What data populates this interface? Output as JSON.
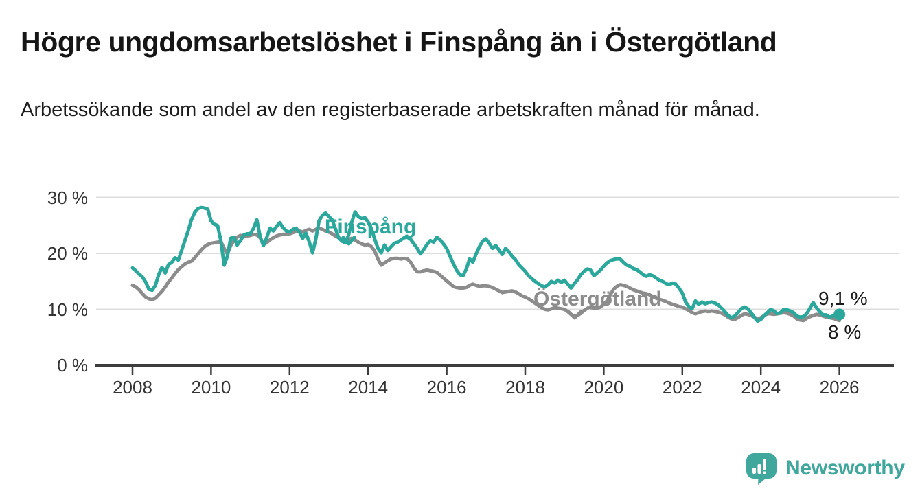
{
  "header": {
    "title": "Högre ungdomsarbetslöshet i Finspång än i Östergötland",
    "subtitle": "Arbetssökande som andel av den registerbaserade arbetskraften månad för månad."
  },
  "colors": {
    "finspang": "#2ba89b",
    "ostergotland": "#8c8c8c",
    "axis": "#3d3d3d",
    "grid": "#dddddd",
    "title_text": "#161616",
    "tick_label": "#333333",
    "annotation_text": "#1a1a1a",
    "brand": "#3fa79b"
  },
  "chart_data": {
    "type": "line",
    "unit": "percent",
    "frequency": "monthly",
    "x_start": "2008-01",
    "x_end": "2026-01",
    "grid": "horizontal",
    "legend_position": "inline-labels",
    "ylim": [
      0,
      32
    ],
    "x_ticks": [
      {
        "year": 2008,
        "label": "2008"
      },
      {
        "year": 2010,
        "label": "2010"
      },
      {
        "year": 2012,
        "label": "2012"
      },
      {
        "year": 2014,
        "label": "2014"
      },
      {
        "year": 2016,
        "label": "2016"
      },
      {
        "year": 2018,
        "label": "2018"
      },
      {
        "year": 2020,
        "label": "2020"
      },
      {
        "year": 2022,
        "label": "2022"
      },
      {
        "year": 2024,
        "label": "2024"
      },
      {
        "year": 2026,
        "label": "2026"
      }
    ],
    "y_ticks": [
      {
        "value": 0,
        "label": "0 %"
      },
      {
        "value": 10,
        "label": "10 %"
      },
      {
        "value": 20,
        "label": "20 %"
      },
      {
        "value": 30,
        "label": "30 %"
      }
    ],
    "series": [
      {
        "name": "Finspång",
        "color": "#2ba89b",
        "end_label": "9,1 %",
        "end_value": 9.1,
        "values": [
          17.4,
          16.9,
          16.3,
          15.8,
          14.9,
          13.6,
          13.4,
          14.3,
          16.2,
          17.5,
          16.5,
          18.0,
          18.4,
          19.2,
          18.8,
          20.5,
          22.3,
          24.0,
          26.0,
          27.3,
          28.0,
          28.2,
          28.1,
          27.9,
          25.8,
          25.2,
          25.0,
          22.3,
          17.9,
          19.5,
          22.7,
          22.9,
          21.5,
          22.3,
          23.3,
          23.5,
          23.5,
          24.5,
          26.0,
          23.0,
          21.4,
          22.8,
          24.5,
          24.0,
          24.8,
          25.5,
          24.6,
          24.0,
          23.8,
          24.3,
          24.5,
          23.8,
          22.7,
          23.6,
          22.1,
          20.1,
          22.5,
          25.8,
          26.8,
          27.2,
          26.6,
          26.0,
          24.4,
          22.8,
          22.2,
          21.9,
          23.2,
          25.6,
          27.4,
          26.6,
          26.2,
          26.4,
          25.6,
          24.4,
          22.6,
          20.9,
          20.1,
          21.5,
          20.5,
          21.2,
          21.8,
          22.0,
          22.4,
          22.8,
          22.9,
          22.5,
          21.7,
          20.9,
          19.9,
          20.7,
          21.6,
          22.3,
          22.0,
          22.9,
          22.4,
          21.7,
          20.9,
          19.5,
          18.2,
          17.0,
          16.2,
          16.0,
          17.2,
          19.0,
          18.4,
          19.9,
          21.2,
          22.2,
          22.6,
          21.8,
          20.9,
          21.4,
          20.6,
          19.8,
          20.9,
          20.3,
          19.5,
          18.9,
          18.0,
          17.4,
          16.8,
          16.0,
          15.5,
          15.0,
          14.6,
          14.2,
          14.0,
          14.4,
          15.0,
          14.7,
          15.2,
          14.8,
          15.2,
          14.5,
          13.8,
          14.6,
          15.3,
          16.2,
          16.8,
          17.2,
          17.0,
          16.0,
          16.5,
          17.0,
          17.7,
          18.3,
          18.7,
          18.9,
          19.0,
          19.0,
          18.4,
          17.9,
          17.7,
          17.3,
          17.1,
          16.7,
          16.2,
          15.9,
          16.2,
          16.0,
          15.6,
          15.2,
          15.0,
          14.6,
          14.4,
          14.7,
          14.5,
          13.8,
          12.9,
          11.3,
          10.5,
          10.1,
          11.5,
          10.9,
          11.3,
          11.0,
          11.2,
          11.3,
          11.1,
          10.8,
          10.2,
          9.6,
          8.9,
          8.5,
          8.8,
          9.4,
          10.1,
          10.4,
          10.1,
          9.4,
          8.6,
          7.9,
          8.2,
          8.9,
          9.4,
          10.0,
          9.7,
          9.2,
          9.4,
          10.0,
          9.9,
          9.7,
          9.4,
          8.8,
          8.6,
          8.7,
          9.2,
          10.2,
          11.2,
          10.3,
          9.6,
          9.0,
          9.0,
          8.6,
          8.8,
          9.0,
          9.1
        ]
      },
      {
        "name": "Östergötland",
        "color": "#8c8c8c",
        "end_label": "8 %",
        "end_value": 8.0,
        "values": [
          14.3,
          14.0,
          13.5,
          12.8,
          12.2,
          11.9,
          11.7,
          12.0,
          12.6,
          13.2,
          14.0,
          14.9,
          15.6,
          16.4,
          17.1,
          17.6,
          18.1,
          18.4,
          18.6,
          19.2,
          19.9,
          20.6,
          21.2,
          21.6,
          21.8,
          21.9,
          22.0,
          22.1,
          20.9,
          19.9,
          21.4,
          22.3,
          22.9,
          23.2,
          23.0,
          23.1,
          23.2,
          23.4,
          23.3,
          22.8,
          21.6,
          21.9,
          22.4,
          22.8,
          23.1,
          23.3,
          23.4,
          23.4,
          23.5,
          23.7,
          23.9,
          24.0,
          23.8,
          24.1,
          24.3,
          24.0,
          24.3,
          24.5,
          24.3,
          24.0,
          23.8,
          23.5,
          23.1,
          22.8,
          22.5,
          22.3,
          22.5,
          22.7,
          22.4,
          22.0,
          21.7,
          21.5,
          21.6,
          21.2,
          20.4,
          19.0,
          17.9,
          18.3,
          18.7,
          19.0,
          19.1,
          19.1,
          19.0,
          19.1,
          19.0,
          18.4,
          17.4,
          16.7,
          16.7,
          16.9,
          17.0,
          16.9,
          16.8,
          16.6,
          16.1,
          15.6,
          15.1,
          14.6,
          14.1,
          13.9,
          13.8,
          13.8,
          13.9,
          14.3,
          14.5,
          14.3,
          14.1,
          14.2,
          14.2,
          14.1,
          13.9,
          13.6,
          13.3,
          13.0,
          13.1,
          13.2,
          13.3,
          13.1,
          12.8,
          12.4,
          12.2,
          11.9,
          11.5,
          11.1,
          10.7,
          10.3,
          10.0,
          9.9,
          10.1,
          10.3,
          10.2,
          10.1,
          10.0,
          9.6,
          9.1,
          8.8,
          8.9,
          9.3,
          9.8,
          10.2,
          10.5,
          10.3,
          10.2,
          10.4,
          10.9,
          11.5,
          12.6,
          13.6,
          14.1,
          14.4,
          14.3,
          14.1,
          13.8,
          13.5,
          13.3,
          13.1,
          12.9,
          12.8,
          12.6,
          12.3,
          12.0,
          11.8,
          11.6,
          11.4,
          11.1,
          10.9,
          10.7,
          10.5,
          10.4,
          10.1,
          9.8,
          9.4,
          9.2,
          9.4,
          9.6,
          9.7,
          9.6,
          9.7,
          9.6,
          9.5,
          9.3,
          9.0,
          8.6,
          8.3,
          8.2,
          8.5,
          8.9,
          9.2,
          9.1,
          8.9,
          8.6,
          8.3,
          8.5,
          8.9,
          9.2,
          9.2,
          9.1,
          9.2,
          9.3,
          9.4,
          9.3,
          9.1,
          8.8,
          8.3,
          8.1,
          8.0,
          8.4,
          8.7,
          8.9,
          9.1,
          9.0,
          8.8,
          8.6,
          8.5,
          8.4,
          8.2,
          8.0
        ]
      }
    ]
  },
  "footer": {
    "brand": "Newsworthy"
  }
}
